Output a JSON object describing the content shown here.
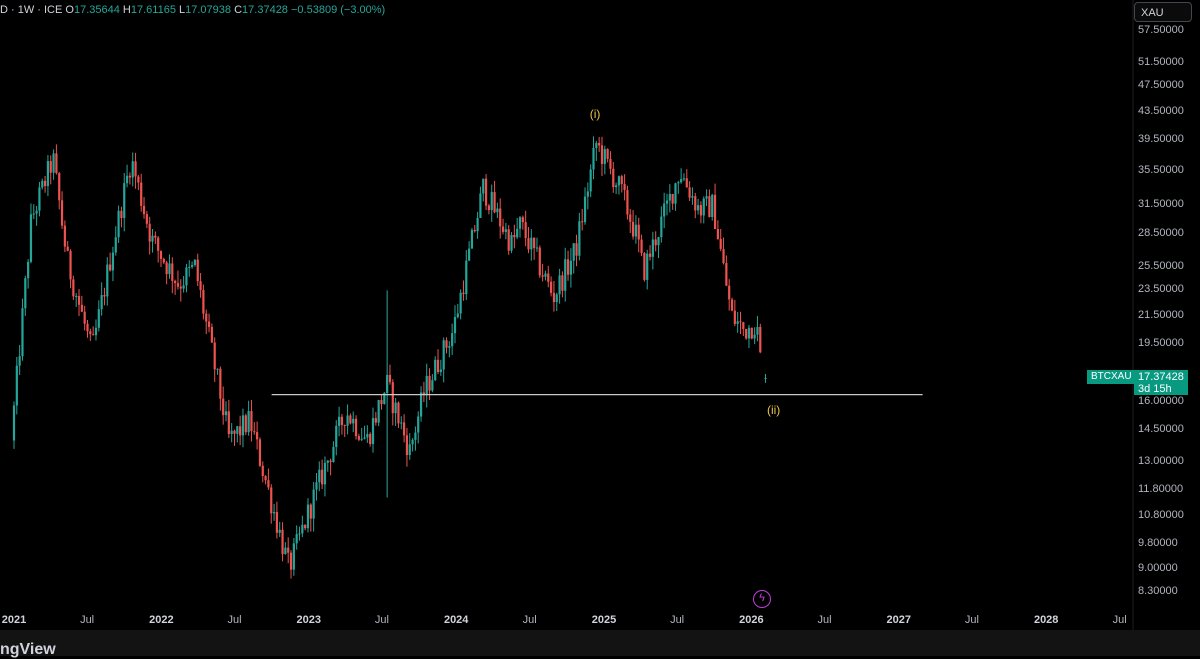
{
  "header": {
    "prefix": "D · 1W · ICE",
    "open_label": "O",
    "open": "17.35644",
    "high_label": "H",
    "high": "17.61165",
    "low_label": "L",
    "low": "17.07938",
    "close_label": "C",
    "close": "17.37428",
    "change": "−0.53809 (−3.00%)"
  },
  "symbol_search": "XAU",
  "price_tag": {
    "symbol": "BTCXAU",
    "price": "17.37428",
    "countdown": "3d 15h"
  },
  "annotations": {
    "wave_i": "(i)",
    "wave_ii": "(ii)"
  },
  "brand": "ngView",
  "colors": {
    "up": "#26a69a",
    "down": "#ef5350",
    "accent": "#089981",
    "wave": "#e8c54a",
    "hline": "#c8c8c8"
  },
  "chart_data": {
    "type": "candlestick",
    "timeframe": "1W",
    "y_scale": "log",
    "y_ticks": [
      "57.50000",
      "51.50000",
      "47.50000",
      "43.50000",
      "39.50000",
      "35.50000",
      "31.50000",
      "28.50000",
      "25.50000",
      "23.50000",
      "21.50000",
      "19.50000",
      "16.00000",
      "14.50000",
      "13.00000",
      "11.80000",
      "10.80000",
      "9.80000",
      "9.00000",
      "8.30000"
    ],
    "x_ticks": [
      {
        "label": "2021",
        "year": true
      },
      {
        "label": "Jul",
        "year": false
      },
      {
        "label": "2022",
        "year": true
      },
      {
        "label": "Jul",
        "year": false
      },
      {
        "label": "2023",
        "year": true
      },
      {
        "label": "Jul",
        "year": false
      },
      {
        "label": "2024",
        "year": true
      },
      {
        "label": "Jul",
        "year": false
      },
      {
        "label": "2025",
        "year": true
      },
      {
        "label": "Jul",
        "year": false
      },
      {
        "label": "2026",
        "year": true
      },
      {
        "label": "Jul",
        "year": false
      },
      {
        "label": "2027",
        "year": true
      },
      {
        "label": "Jul",
        "year": false
      },
      {
        "label": "2028",
        "year": true
      },
      {
        "label": "Jul",
        "year": false
      }
    ],
    "horizontal_line": {
      "value": 16.4,
      "x_start": "2022-10-01",
      "x_end": "2027-03-01"
    },
    "wave_labels": [
      {
        "label": "(i)",
        "date": "2024-12-10",
        "value": 43.0
      },
      {
        "label": "(ii)",
        "date": "2026-02-25",
        "value": 15.8
      }
    ],
    "anchors": [
      [
        "2021-01-01",
        14.0
      ],
      [
        "2021-02-20",
        30.0
      ],
      [
        "2021-04-15",
        37.0
      ],
      [
        "2021-05-20",
        26.0
      ],
      [
        "2021-07-20",
        19.0
      ],
      [
        "2021-09-05",
        26.5
      ],
      [
        "2021-10-25",
        37.0
      ],
      [
        "2021-12-15",
        28.0
      ],
      [
        "2022-02-20",
        24.0
      ],
      [
        "2022-04-01",
        25.5
      ],
      [
        "2022-06-25",
        14.0
      ],
      [
        "2022-08-15",
        15.0
      ],
      [
        "2022-11-20",
        9.0
      ],
      [
        "2023-01-20",
        11.5
      ],
      [
        "2023-04-10",
        15.5
      ],
      [
        "2023-06-01",
        14.0
      ],
      [
        "2023-07-20",
        17.0
      ],
      [
        "2023-09-15",
        13.5
      ],
      [
        "2023-10-20",
        16.5
      ],
      [
        "2024-01-01",
        20.5
      ],
      [
        "2024-03-15",
        33.5
      ],
      [
        "2024-05-25",
        27.5
      ],
      [
        "2024-06-15",
        29.5
      ],
      [
        "2024-09-05",
        23.0
      ],
      [
        "2024-10-30",
        27.0
      ],
      [
        "2024-12-20",
        39.0
      ],
      [
        "2025-02-20",
        33.0
      ],
      [
        "2025-04-01",
        28.0
      ],
      [
        "2025-04-15",
        25.0
      ],
      [
        "2025-07-15",
        35.5
      ],
      [
        "2025-09-01",
        31.0
      ],
      [
        "2025-10-05",
        31.5
      ],
      [
        "2025-11-20",
        21.5
      ],
      [
        "2025-12-20",
        20.5
      ],
      [
        "2026-01-20",
        21.0
      ],
      [
        "2026-02-05",
        17.4
      ]
    ],
    "last": {
      "open": 17.35644,
      "high": 17.61165,
      "low": 17.07938,
      "close": 17.37428
    }
  }
}
